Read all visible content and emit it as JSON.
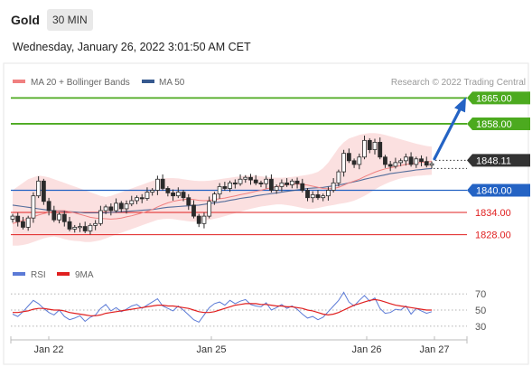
{
  "header": {
    "title": "Gold",
    "timeframe_label": "30 MIN",
    "timestamp": "Wednesday, January 26, 2022 3:01:50 AM CET"
  },
  "colors": {
    "accent_green": "#4caa1f",
    "accent_blue": "#2463c4",
    "red_level": "#e02020",
    "ma20": "#f08080",
    "ma50": "#36598f",
    "band_fill": "#fbe0e0",
    "rsi": "#5b7ad6",
    "rsi_ma": "#e02020",
    "price_label_bg": "#333333",
    "candle": "#2a2a2a"
  },
  "chart_data": [
    {
      "type": "candlestick",
      "title": "",
      "legend": [
        {
          "label": "MA 20 + Bollinger Bands",
          "color": "#f08080"
        },
        {
          "label": "MA 50",
          "color": "#36598f"
        }
      ],
      "copyright": "Research © 2022 Trading Central",
      "ylim": [
        1823,
        1869
      ],
      "x_ticks": [
        "Jan 22",
        "Jan 25",
        "Jan 26",
        "Jan 27"
      ],
      "current_price": "1848.11",
      "levels": [
        {
          "value": 1865.0,
          "label": "1865.00",
          "style": "target",
          "color": "#4caa1f"
        },
        {
          "value": 1858.0,
          "label": "1858.00",
          "style": "target",
          "color": "#4caa1f"
        },
        {
          "value": 1840.0,
          "label": "1840.00",
          "style": "pivot",
          "color": "#2463c4"
        },
        {
          "value": 1834.0,
          "label": "1834.00",
          "style": "support",
          "color": "#e02020"
        },
        {
          "value": 1828.0,
          "label": "1828.00",
          "style": "support",
          "color": "#e02020"
        }
      ],
      "arrow": {
        "from": 1848.5,
        "to": 1865.0,
        "direction": "up"
      },
      "closes": [
        1833.0,
        1831.5,
        1830.0,
        1832.5,
        1838.5,
        1842.5,
        1837.0,
        1834.5,
        1832.0,
        1833.5,
        1831.5,
        1829.5,
        1830.0,
        1830.2,
        1829.0,
        1830.5,
        1831.0,
        1834.5,
        1835.5,
        1834.5,
        1836.5,
        1835.0,
        1836.3,
        1837.2,
        1838.0,
        1837.8,
        1839.5,
        1840.0,
        1843.0,
        1840.5,
        1839.3,
        1838.5,
        1839.5,
        1838.0,
        1836.0,
        1833.0,
        1831.0,
        1833.0,
        1837.0,
        1839.0,
        1841.0,
        1840.5,
        1842.0,
        1841.8,
        1843.0,
        1843.5,
        1842.8,
        1842.0,
        1841.8,
        1843.0,
        1840.0,
        1841.0,
        1842.0,
        1841.5,
        1842.5,
        1841.8,
        1840.0,
        1838.0,
        1838.8,
        1838.0,
        1838.5,
        1840.0,
        1842.0,
        1845.0,
        1850.0,
        1848.0,
        1847.0,
        1849.0,
        1853.5,
        1851.0,
        1853.0,
        1849.0,
        1847.0,
        1846.5,
        1847.5,
        1848.0,
        1849.0,
        1847.0,
        1848.5,
        1847.8,
        1846.8,
        1847.2
      ],
      "ma20": [
        1831.0,
        1831.4,
        1831.8,
        1832.3,
        1832.8,
        1833.3,
        1833.7,
        1834.0,
        1834.3,
        1834.5,
        1834.5,
        1834.2,
        1833.9,
        1833.5,
        1833.1,
        1832.7,
        1832.5,
        1832.4,
        1832.3,
        1832.2,
        1832.3,
        1832.5,
        1832.8,
        1833.1,
        1833.5,
        1833.9,
        1834.3,
        1834.8,
        1835.5,
        1836.1,
        1836.6,
        1837.0,
        1837.3,
        1837.5,
        1837.6,
        1837.5,
        1837.3,
        1837.2,
        1837.3,
        1837.5,
        1837.7,
        1837.9,
        1838.2,
        1838.5,
        1838.8,
        1839.1,
        1839.4,
        1839.7,
        1840.0,
        1840.4,
        1840.7,
        1841.0,
        1841.3,
        1841.5,
        1841.7,
        1841.7,
        1841.6,
        1841.4,
        1841.1,
        1840.8,
        1840.5,
        1840.4,
        1840.5,
        1840.8,
        1841.4,
        1842.0,
        1842.5,
        1843.0,
        1843.7,
        1844.3,
        1844.9,
        1845.4,
        1845.8,
        1846.1,
        1846.4,
        1846.7,
        1847.0,
        1847.2,
        1847.4,
        1847.6,
        1847.7,
        1847.8
      ],
      "ma50": [
        1836.0,
        1835.8,
        1835.6,
        1835.4,
        1835.2,
        1835.0,
        1834.8,
        1834.6,
        1834.5,
        1834.4,
        1834.3,
        1834.2,
        1834.1,
        1834.0,
        1833.9,
        1833.9,
        1833.9,
        1833.9,
        1833.9,
        1834.0,
        1834.1,
        1834.2,
        1834.3,
        1834.4,
        1834.5,
        1834.6,
        1834.7,
        1834.8,
        1835.0,
        1835.2,
        1835.4,
        1835.5,
        1835.6,
        1835.7,
        1835.8,
        1835.9,
        1836.0,
        1836.2,
        1836.4,
        1836.6,
        1836.8,
        1837.0,
        1837.3,
        1837.5,
        1837.8,
        1838.0,
        1838.2,
        1838.5,
        1838.7,
        1838.9,
        1839.1,
        1839.3,
        1839.5,
        1839.7,
        1839.9,
        1840.1,
        1840.3,
        1840.5,
        1840.6,
        1840.7,
        1840.8,
        1841.0,
        1841.2,
        1841.4,
        1841.7,
        1842.0,
        1842.3,
        1842.6,
        1843.0,
        1843.3,
        1843.6,
        1843.9,
        1844.2,
        1844.5,
        1844.7,
        1844.9,
        1845.1,
        1845.3,
        1845.5,
        1845.6,
        1845.8,
        1845.9
      ],
      "bb_upper": [
        1840.0,
        1841.0,
        1842.0,
        1843.0,
        1843.5,
        1844.0,
        1843.8,
        1843.5,
        1843.0,
        1842.5,
        1842.0,
        1841.5,
        1841.0,
        1840.5,
        1840.0,
        1839.5,
        1839.0,
        1838.5,
        1838.2,
        1838.5,
        1839.0,
        1839.5,
        1840.0,
        1840.5,
        1841.0,
        1841.5,
        1842.0,
        1842.5,
        1843.0,
        1843.2,
        1843.3,
        1843.3,
        1843.2,
        1843.0,
        1842.8,
        1842.6,
        1842.5,
        1842.5,
        1842.6,
        1842.8,
        1843.0,
        1843.2,
        1843.4,
        1843.6,
        1843.8,
        1844.0,
        1844.0,
        1844.0,
        1843.8,
        1843.6,
        1843.5,
        1843.4,
        1843.4,
        1843.5,
        1843.6,
        1843.8,
        1844.0,
        1844.2,
        1844.5,
        1845.0,
        1846.0,
        1847.5,
        1849.5,
        1851.5,
        1853.0,
        1854.0,
        1854.5,
        1855.0,
        1855.3,
        1855.5,
        1855.5,
        1855.3,
        1855.0,
        1854.6,
        1854.2,
        1853.8,
        1853.4,
        1853.0,
        1852.6,
        1852.3,
        1852.0,
        1851.8
      ],
      "bb_lower": [
        1825.0,
        1825.0,
        1825.2,
        1825.5,
        1826.0,
        1826.5,
        1827.0,
        1827.3,
        1827.5,
        1827.2,
        1826.8,
        1826.5,
        1826.3,
        1826.2,
        1826.0,
        1826.0,
        1826.2,
        1826.5,
        1827.0,
        1827.5,
        1828.0,
        1828.5,
        1829.0,
        1829.5,
        1830.0,
        1830.5,
        1831.0,
        1831.5,
        1832.0,
        1832.2,
        1832.3,
        1832.2,
        1832.0,
        1831.8,
        1831.6,
        1831.5,
        1831.6,
        1831.8,
        1832.0,
        1832.3,
        1832.6,
        1833.0,
        1833.4,
        1833.8,
        1834.2,
        1834.6,
        1835.0,
        1835.3,
        1835.6,
        1835.8,
        1836.0,
        1836.2,
        1836.2,
        1836.0,
        1835.8,
        1835.5,
        1835.2,
        1835.0,
        1835.0,
        1835.2,
        1835.5,
        1835.8,
        1836.0,
        1836.3,
        1836.5,
        1836.8,
        1837.2,
        1837.8,
        1838.5,
        1839.3,
        1840.2,
        1841.0,
        1841.7,
        1842.3,
        1842.8,
        1843.2,
        1843.5,
        1843.7,
        1843.9,
        1844.0,
        1844.1,
        1844.2
      ]
    },
    {
      "type": "line",
      "title": "",
      "legend": [
        {
          "label": "RSI",
          "color": "#5b7ad6"
        },
        {
          "label": "9MA",
          "color": "#e02020"
        }
      ],
      "y_ticks": [
        "70",
        "50",
        "30"
      ],
      "ylim": [
        22,
        78
      ],
      "series": [
        {
          "name": "RSI",
          "values": [
            45,
            42,
            48,
            55,
            62,
            58,
            52,
            47,
            44,
            50,
            42,
            38,
            40,
            43,
            36,
            41,
            44,
            52,
            57,
            49,
            53,
            48,
            51,
            55,
            57,
            52,
            56,
            60,
            64,
            55,
            52,
            49,
            55,
            50,
            44,
            38,
            35,
            44,
            53,
            58,
            60,
            56,
            62,
            58,
            61,
            63,
            57,
            55,
            54,
            59,
            50,
            53,
            57,
            52,
            55,
            51,
            45,
            40,
            42,
            38,
            41,
            48,
            55,
            62,
            72,
            60,
            55,
            62,
            68,
            61,
            65,
            52,
            46,
            47,
            51,
            50,
            55,
            45,
            52,
            49,
            46,
            48
          ]
        },
        {
          "name": "9MA",
          "values": [
            47,
            47,
            48,
            49,
            51,
            52,
            52,
            51,
            50,
            50,
            49,
            47,
            46,
            45,
            44,
            43,
            43,
            44,
            46,
            47,
            48,
            49,
            50,
            51,
            52,
            53,
            54,
            55,
            56,
            56,
            55,
            55,
            54,
            53,
            52,
            50,
            48,
            47,
            47,
            48,
            50,
            52,
            54,
            56,
            57,
            58,
            58,
            58,
            57,
            57,
            56,
            55,
            55,
            54,
            54,
            53,
            52,
            50,
            49,
            47,
            45,
            44,
            45,
            47,
            50,
            53,
            56,
            58,
            60,
            62,
            63,
            62,
            60,
            58,
            56,
            55,
            54,
            53,
            52,
            51,
            50,
            50
          ]
        }
      ]
    }
  ]
}
